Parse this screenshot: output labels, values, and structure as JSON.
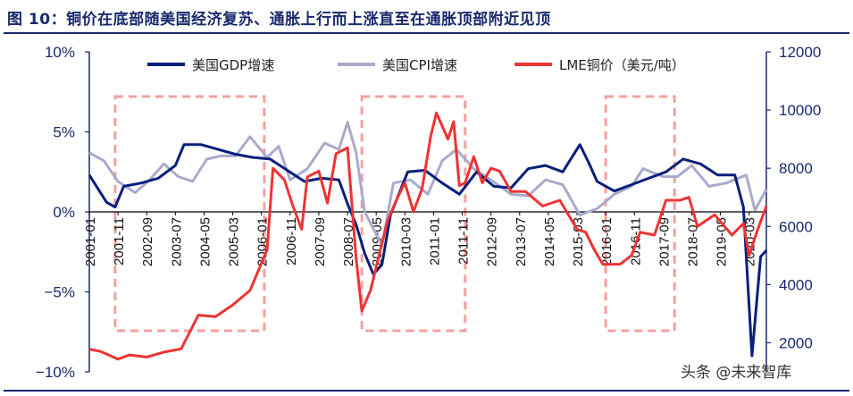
{
  "title": "图 10：铜价在底部随美国经济复苏、通胀上行而上涨直至在通胀顶部附近见顶",
  "watermark": "头条 @未来智库",
  "colors": {
    "gdp": "#0a1f7a",
    "cpi": "#aaaacc",
    "lme": "#ee3333",
    "box": "#f5a0a0",
    "title": "#1a2a6c",
    "axis": "#1a2a6c"
  },
  "chart_data": {
    "type": "line",
    "left_axis": {
      "ticks": [
        "10%",
        "5%",
        "0%",
        "−5%",
        "−10%"
      ],
      "range": [
        -10,
        10
      ],
      "unit": "%"
    },
    "right_axis": {
      "ticks": [
        "12000",
        "10000",
        "8000",
        "6000",
        "4000",
        "2000"
      ],
      "range": [
        1000,
        12000
      ]
    },
    "x_axis": {
      "range": [
        "2001-01",
        "2020-09"
      ],
      "tick_labels": [
        "2001-01",
        "2001-11",
        "2002-09",
        "2003-07",
        "2004-05",
        "2005-03",
        "2006-01",
        "2006-11",
        "2007-09",
        "2008-07",
        "2009-05",
        "2010-03",
        "2011-01",
        "2011-11",
        "2012-09",
        "2013-07",
        "2014-05",
        "2015-03",
        "2016-01",
        "2016-11",
        "2017-09",
        "2018-07",
        "2019-05",
        "2020-03"
      ]
    },
    "legend": {
      "placement": "top",
      "entries": [
        "美国GDP增速",
        "美国CPI增速",
        "LME铜价（美元/吨）"
      ]
    },
    "series": [
      {
        "name": "美国GDP增速",
        "axis": "left",
        "x": [
          "2001-01",
          "2001-07",
          "2001-10",
          "2002-01",
          "2002-07",
          "2003-01",
          "2003-07",
          "2003-10",
          "2004-04",
          "2004-10",
          "2005-04",
          "2005-10",
          "2006-04",
          "2006-10",
          "2007-04",
          "2007-10",
          "2008-04",
          "2008-07",
          "2008-10",
          "2009-01",
          "2009-04",
          "2009-07",
          "2009-10",
          "2010-04",
          "2010-10",
          "2011-04",
          "2011-10",
          "2012-04",
          "2012-10",
          "2013-04",
          "2013-10",
          "2014-04",
          "2014-10",
          "2015-04",
          "2015-07",
          "2015-10",
          "2016-04",
          "2016-10",
          "2017-04",
          "2017-10",
          "2018-04",
          "2018-10",
          "2019-04",
          "2019-10",
          "2020-01",
          "2020-04",
          "2020-07",
          "2020-09"
        ],
        "values": [
          2.3,
          0.6,
          0.3,
          1.6,
          1.8,
          2.1,
          2.9,
          4.2,
          4.2,
          3.9,
          3.6,
          3.4,
          3.3,
          2.6,
          1.9,
          2.1,
          2.0,
          0.5,
          -0.8,
          -2.6,
          -3.9,
          -3.3,
          -0.2,
          2.5,
          2.6,
          1.8,
          1.1,
          2.5,
          1.6,
          1.5,
          2.7,
          2.9,
          2.5,
          4.2,
          3.1,
          1.9,
          1.3,
          1.7,
          2.1,
          2.5,
          3.3,
          3.0,
          2.3,
          2.3,
          0.3,
          -9.0,
          -2.8,
          -2.4
        ]
      },
      {
        "name": "美国CPI增速",
        "axis": "left",
        "x": [
          "2001-01",
          "2001-06",
          "2001-11",
          "2002-05",
          "2002-10",
          "2003-03",
          "2003-08",
          "2004-01",
          "2004-06",
          "2004-11",
          "2005-04",
          "2005-09",
          "2006-03",
          "2006-07",
          "2006-11",
          "2007-05",
          "2007-11",
          "2008-04",
          "2008-07",
          "2008-10",
          "2009-01",
          "2009-07",
          "2009-11",
          "2010-05",
          "2010-11",
          "2011-04",
          "2011-09",
          "2012-03",
          "2012-09",
          "2013-04",
          "2013-10",
          "2014-04",
          "2014-10",
          "2015-04",
          "2015-10",
          "2016-04",
          "2016-10",
          "2017-02",
          "2017-09",
          "2018-02",
          "2018-07",
          "2019-01",
          "2019-07",
          "2020-02",
          "2020-05",
          "2020-09"
        ],
        "values": [
          3.7,
          3.2,
          1.9,
          1.2,
          2.0,
          3.0,
          2.2,
          1.9,
          3.3,
          3.5,
          3.5,
          4.7,
          3.4,
          4.1,
          2.0,
          2.7,
          4.3,
          3.9,
          5.6,
          3.7,
          0.0,
          -2.1,
          1.8,
          2.0,
          1.1,
          3.2,
          3.9,
          2.7,
          2.0,
          1.1,
          1.0,
          2.0,
          1.7,
          -0.2,
          0.2,
          1.1,
          1.6,
          2.7,
          2.2,
          2.2,
          2.9,
          1.6,
          1.8,
          2.3,
          0.1,
          1.4
        ]
      },
      {
        "name": "LME铜价（美元/吨）",
        "axis": "right",
        "x": [
          "2001-01",
          "2001-05",
          "2001-11",
          "2002-03",
          "2002-09",
          "2003-03",
          "2003-09",
          "2004-03",
          "2004-09",
          "2005-03",
          "2005-09",
          "2006-03",
          "2006-05",
          "2006-09",
          "2006-12",
          "2007-03",
          "2007-05",
          "2007-09",
          "2007-12",
          "2008-03",
          "2008-07",
          "2008-10",
          "2008-12",
          "2009-03",
          "2009-06",
          "2009-09",
          "2009-12",
          "2010-03",
          "2010-06",
          "2010-09",
          "2010-12",
          "2011-02",
          "2011-06",
          "2011-08",
          "2011-10",
          "2011-12",
          "2012-03",
          "2012-06",
          "2012-09",
          "2012-12",
          "2013-04",
          "2013-09",
          "2014-03",
          "2014-09",
          "2015-03",
          "2015-06",
          "2015-09",
          "2015-12",
          "2016-06",
          "2016-10",
          "2017-01",
          "2017-06",
          "2017-10",
          "2018-03",
          "2018-06",
          "2018-09",
          "2019-03",
          "2019-09",
          "2020-01",
          "2020-03",
          "2020-06",
          "2020-09"
        ],
        "values": [
          1780,
          1700,
          1440,
          1580,
          1510,
          1680,
          1790,
          2950,
          2900,
          3300,
          3800,
          5200,
          8000,
          7600,
          6700,
          5900,
          7700,
          7900,
          6800,
          8500,
          8700,
          4900,
          3100,
          3800,
          5000,
          6200,
          6900,
          7500,
          6500,
          7300,
          9100,
          9900,
          9000,
          9600,
          7400,
          7500,
          8400,
          7500,
          8000,
          7900,
          7200,
          7200,
          6700,
          6900,
          5900,
          5800,
          5200,
          4700,
          4700,
          5000,
          5800,
          5700,
          6900,
          6900,
          7000,
          6000,
          6400,
          5700,
          6100,
          5000,
          5900,
          6700
        ]
      }
    ],
    "boxes": [
      {
        "from": "2001-10",
        "to": "2006-02"
      },
      {
        "from": "2008-12",
        "to": "2011-12"
      },
      {
        "from": "2016-01",
        "to": "2018-01"
      }
    ]
  }
}
